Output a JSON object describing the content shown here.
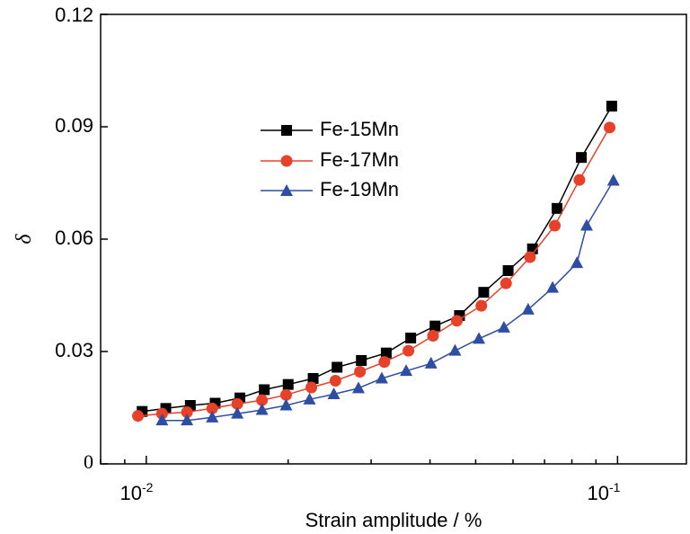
{
  "chart_data": {
    "type": "line",
    "title": "",
    "xlabel": "Strain amplitude / %",
    "ylabel": "δ",
    "xscale": "log",
    "xlim": [
      0.008,
      0.14
    ],
    "ylim": [
      0,
      0.12
    ],
    "x_ticks": [
      0.01,
      0.1
    ],
    "x_tick_labels": [
      {
        "base": "10",
        "exp": "-2"
      },
      {
        "base": "10",
        "exp": "-1"
      }
    ],
    "y_ticks": [
      0,
      0.03,
      0.06,
      0.09,
      0.12
    ],
    "y_tick_labels": [
      "0",
      "0.03",
      "0.06",
      "0.09",
      "0.12"
    ],
    "grid": false,
    "legend_position": "upper-left inside",
    "series": [
      {
        "name": "Fe-15Mn",
        "color": "#000000",
        "marker": "square",
        "points": [
          [
            0.0098,
            0.014
          ],
          [
            0.011,
            0.0148
          ],
          [
            0.0124,
            0.0156
          ],
          [
            0.014,
            0.0162
          ],
          [
            0.0158,
            0.0176
          ],
          [
            0.0178,
            0.0198
          ],
          [
            0.02,
            0.0212
          ],
          [
            0.0226,
            0.0228
          ],
          [
            0.0254,
            0.0258
          ],
          [
            0.0286,
            0.0276
          ],
          [
            0.0323,
            0.0296
          ],
          [
            0.0364,
            0.0336
          ],
          [
            0.041,
            0.0368
          ],
          [
            0.0462,
            0.0396
          ],
          [
            0.052,
            0.0458
          ],
          [
            0.0586,
            0.0516
          ],
          [
            0.066,
            0.0574
          ],
          [
            0.0744,
            0.0682
          ],
          [
            0.0838,
            0.0818
          ],
          [
            0.0972,
            0.0955
          ]
        ]
      },
      {
        "name": "Fe-17Mn",
        "color": "#e8412a",
        "marker": "circle",
        "points": [
          [
            0.0096,
            0.0128
          ],
          [
            0.0108,
            0.0134
          ],
          [
            0.0122,
            0.0138
          ],
          [
            0.0138,
            0.0148
          ],
          [
            0.0156,
            0.016
          ],
          [
            0.0176,
            0.017
          ],
          [
            0.0198,
            0.0184
          ],
          [
            0.0224,
            0.0204
          ],
          [
            0.0252,
            0.0222
          ],
          [
            0.0284,
            0.0246
          ],
          [
            0.032,
            0.0272
          ],
          [
            0.036,
            0.0302
          ],
          [
            0.0406,
            0.0342
          ],
          [
            0.0456,
            0.0382
          ],
          [
            0.0514,
            0.0422
          ],
          [
            0.058,
            0.0482
          ],
          [
            0.0652,
            0.0552
          ],
          [
            0.0736,
            0.0636
          ],
          [
            0.083,
            0.0758
          ],
          [
            0.0962,
            0.0898
          ]
        ]
      },
      {
        "name": "Fe-19Mn",
        "color": "#2d4ea3",
        "marker": "triangle",
        "points": [
          [
            0.0108,
            0.0116
          ],
          [
            0.0122,
            0.0116
          ],
          [
            0.0138,
            0.0124
          ],
          [
            0.0156,
            0.0134
          ],
          [
            0.0176,
            0.0144
          ],
          [
            0.0198,
            0.0156
          ],
          [
            0.0222,
            0.0172
          ],
          [
            0.025,
            0.0186
          ],
          [
            0.0282,
            0.0202
          ],
          [
            0.0316,
            0.0228
          ],
          [
            0.0356,
            0.0248
          ],
          [
            0.0402,
            0.0268
          ],
          [
            0.0452,
            0.0302
          ],
          [
            0.0508,
            0.0334
          ],
          [
            0.0574,
            0.0364
          ],
          [
            0.0646,
            0.0412
          ],
          [
            0.0728,
            0.047
          ],
          [
            0.082,
            0.0536
          ],
          [
            0.086,
            0.0636
          ],
          [
            0.098,
            0.0756
          ]
        ]
      }
    ]
  }
}
